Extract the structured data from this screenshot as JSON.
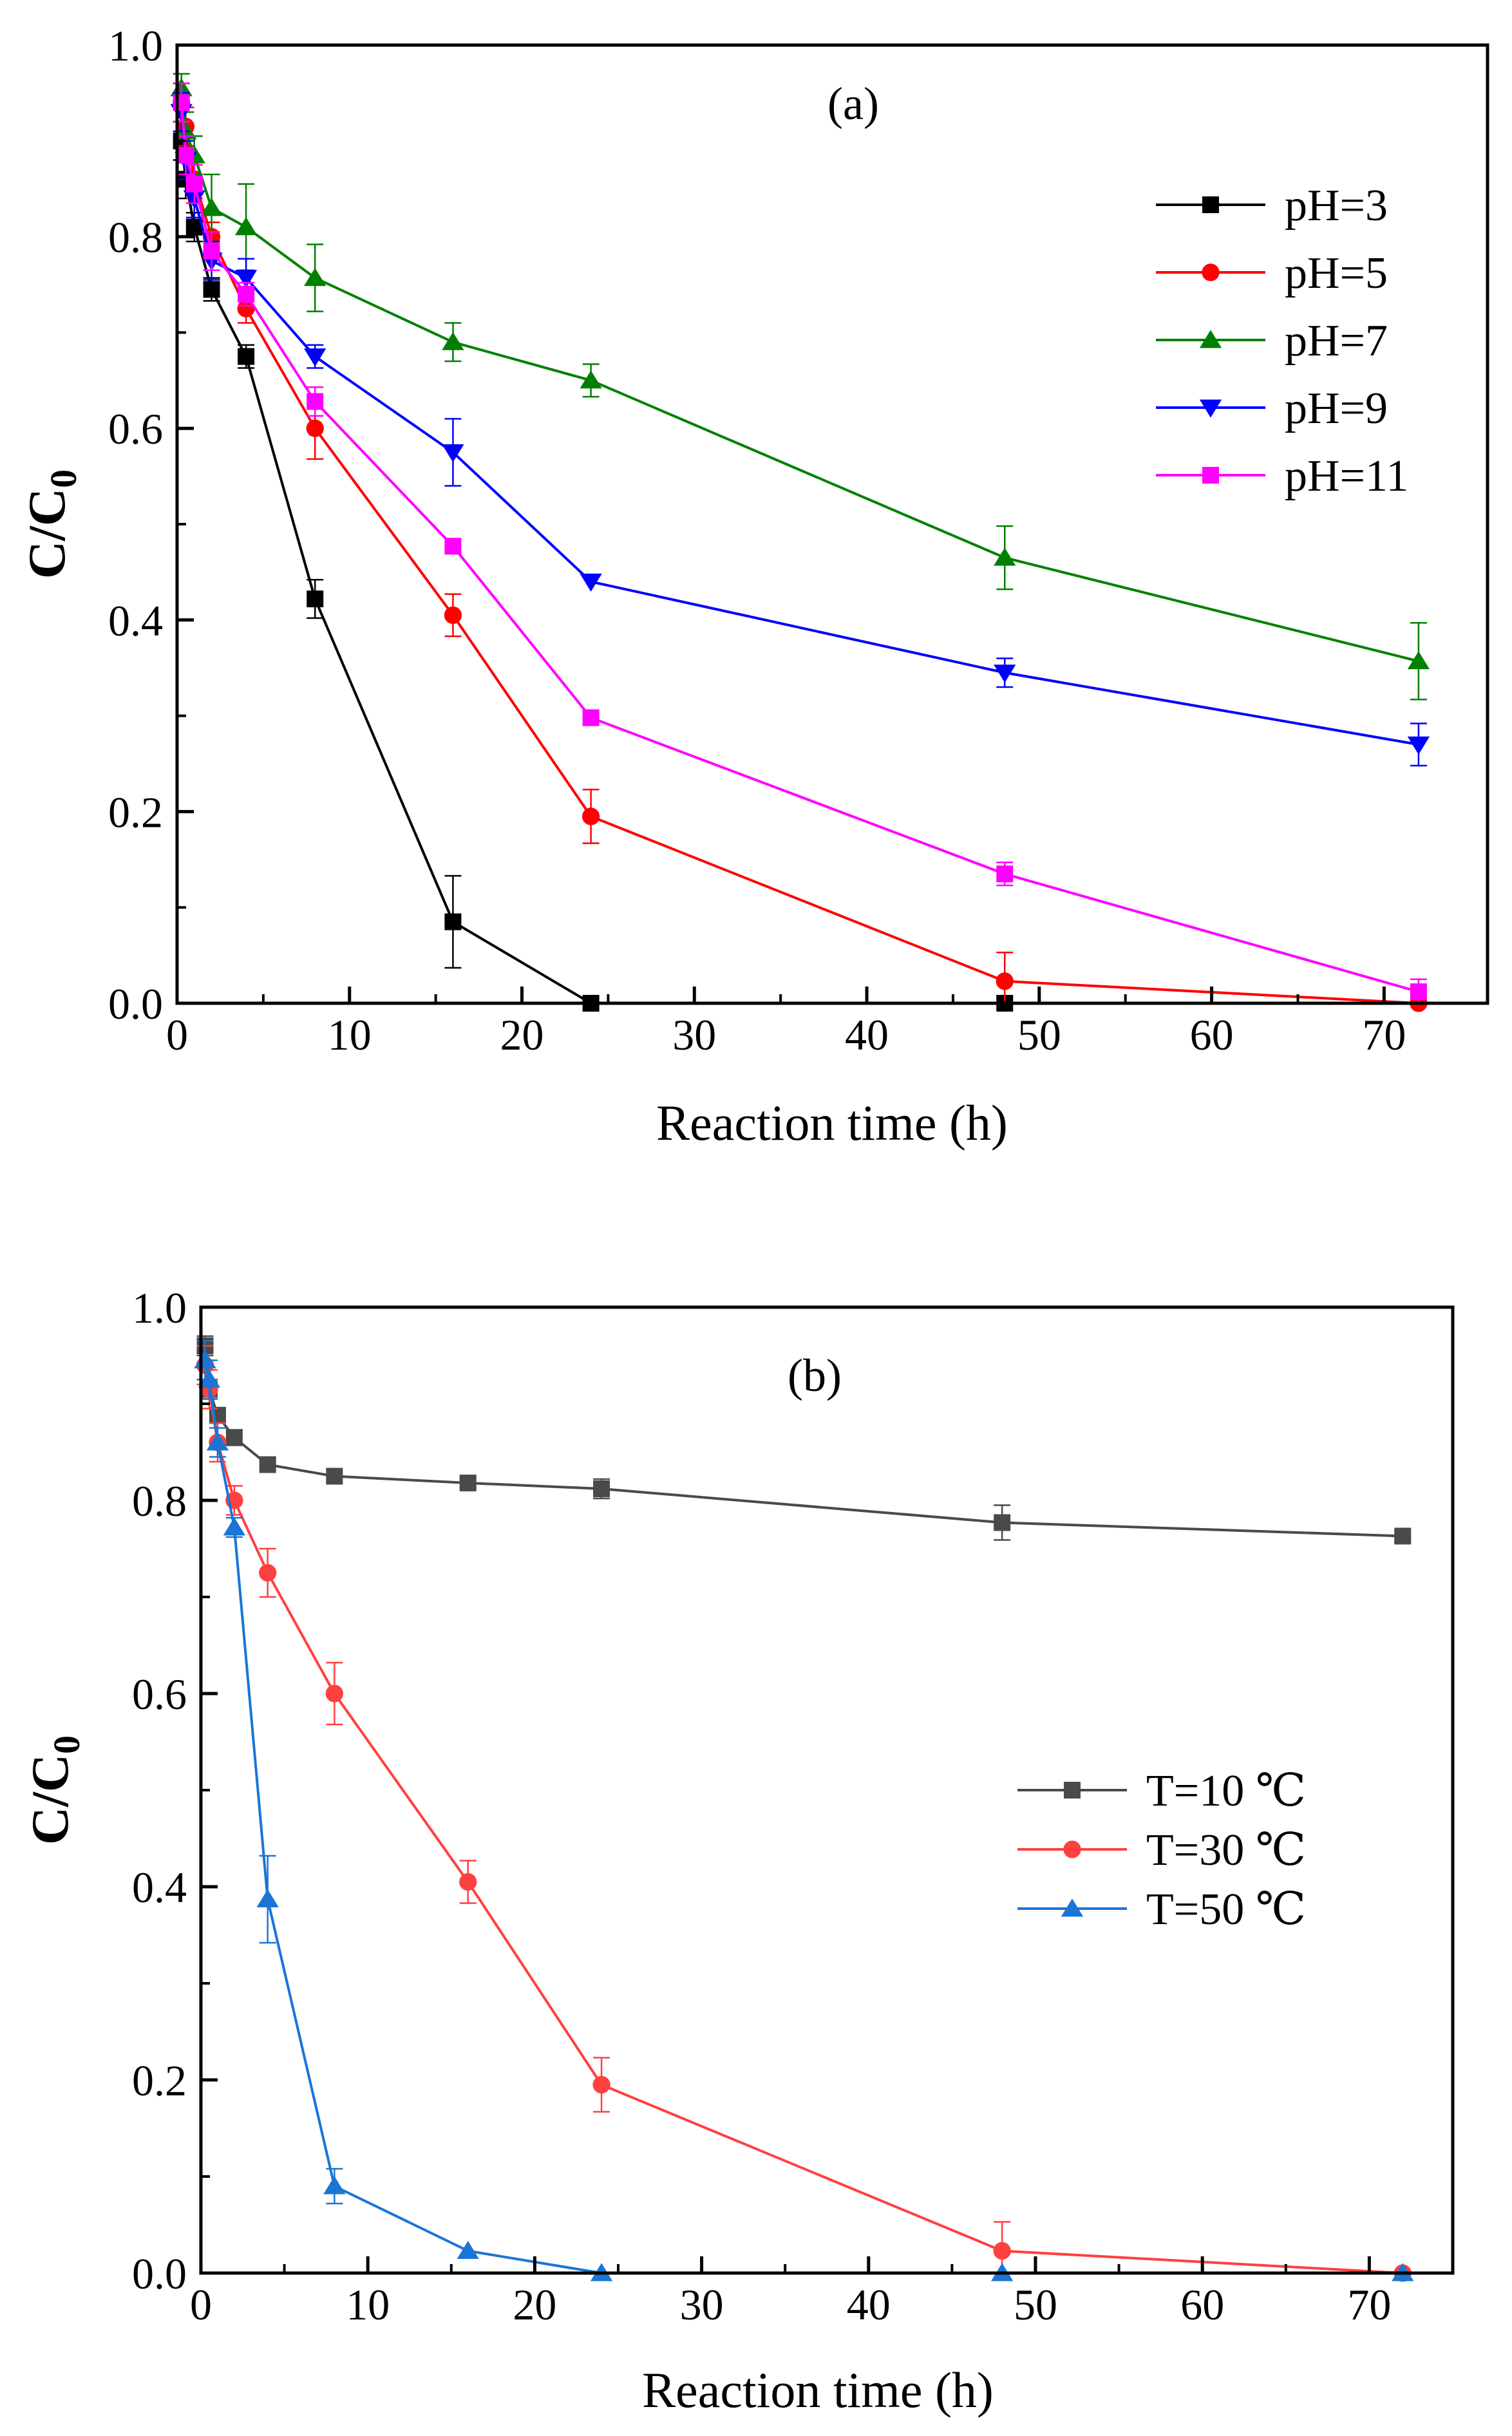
{
  "chart_data": [
    {
      "type": "line",
      "panel_label": "(a)",
      "xlabel": "Reaction time (h)",
      "ylabel_main": "C/C",
      "ylabel_sub": "0",
      "xlim": [
        0,
        76
      ],
      "ylim": [
        0,
        1.0
      ],
      "xticks": [
        0,
        10,
        20,
        30,
        40,
        50,
        60,
        70
      ],
      "yticks": [
        0.0,
        0.2,
        0.4,
        0.6,
        0.8,
        1.0
      ],
      "xtick_labels": [
        "0",
        "10",
        "20",
        "30",
        "40",
        "50",
        "60",
        "70"
      ],
      "ytick_labels": [
        "0.0",
        "0.2",
        "0.4",
        "0.6",
        "0.8",
        "1.0"
      ],
      "legend_position": "top-right",
      "series": [
        {
          "name": "pH=3",
          "color": "#000000",
          "marker": "square",
          "x": [
            0.25,
            0.5,
            1,
            2,
            4,
            8,
            16,
            24,
            48
          ],
          "y": [
            0.9,
            0.86,
            0.81,
            0.745,
            0.675,
            0.422,
            0.085,
            0.0,
            0.0
          ],
          "err": [
            0.02,
            0.02,
            0.015,
            0.012,
            0.012,
            0.02,
            0.048,
            0.0,
            0.0
          ]
        },
        {
          "name": "pH=5",
          "color": "#ff0000",
          "marker": "circle",
          "x": [
            0.25,
            0.5,
            1,
            2,
            4,
            8,
            16,
            24,
            48,
            72
          ],
          "y": [
            0.94,
            0.915,
            0.86,
            0.8,
            0.725,
            0.6,
            0.405,
            0.195,
            0.023,
            0.0
          ],
          "err": [
            0.02,
            0.02,
            0.02,
            0.015,
            0.015,
            0.032,
            0.022,
            0.028,
            0.03,
            0.0
          ]
        },
        {
          "name": "pH=7",
          "color": "#008000",
          "marker": "triangle-up",
          "x": [
            0.25,
            0.5,
            1,
            2,
            4,
            8,
            16,
            24,
            48,
            72
          ],
          "y": [
            0.955,
            0.91,
            0.885,
            0.83,
            0.81,
            0.757,
            0.69,
            0.65,
            0.465,
            0.357
          ],
          "err": [
            0.015,
            0.02,
            0.02,
            0.035,
            0.045,
            0.035,
            0.02,
            0.017,
            0.033,
            0.04
          ]
        },
        {
          "name": "pH=9",
          "color": "#0000ff",
          "marker": "triangle-down",
          "x": [
            0.25,
            0.5,
            1,
            2,
            4,
            8,
            16,
            24,
            48,
            72
          ],
          "y": [
            0.93,
            0.88,
            0.84,
            0.775,
            0.757,
            0.675,
            0.575,
            0.44,
            0.345,
            0.27
          ],
          "err": [
            0.02,
            0.02,
            0.02,
            0.02,
            0.02,
            0.012,
            0.035,
            0.0,
            0.015,
            0.022
          ]
        },
        {
          "name": "pH=11",
          "color": "#ff00ff",
          "marker": "square",
          "x": [
            0.25,
            0.5,
            1,
            2,
            4,
            8,
            16,
            24,
            48,
            72
          ],
          "y": [
            0.94,
            0.885,
            0.855,
            0.785,
            0.74,
            0.628,
            0.477,
            0.298,
            0.135,
            0.012
          ],
          "err": [
            0.02,
            0.02,
            0.02,
            0.02,
            0.012,
            0.015,
            0.0,
            0.0,
            0.012,
            0.013
          ]
        }
      ]
    },
    {
      "type": "line",
      "panel_label": "(b)",
      "xlabel": "Reaction time (h)",
      "ylabel_main": "C/C",
      "ylabel_sub": "0",
      "xlim": [
        0,
        75
      ],
      "ylim": [
        0,
        1.0
      ],
      "xticks": [
        0,
        10,
        20,
        30,
        40,
        50,
        60,
        70
      ],
      "yticks": [
        0.0,
        0.2,
        0.4,
        0.6,
        0.8,
        1.0
      ],
      "xtick_labels": [
        "0",
        "10",
        "20",
        "30",
        "40",
        "50",
        "60",
        "70"
      ],
      "ytick_labels": [
        "0.0",
        "0.2",
        "0.4",
        "0.6",
        "0.8",
        "1.0"
      ],
      "legend_position": "middle-right",
      "series": [
        {
          "name": "T=10 ℃",
          "color": "#4a4a4a",
          "marker": "square",
          "x": [
            0.25,
            0.5,
            1,
            2,
            4,
            8,
            16,
            24,
            48,
            72
          ],
          "y": [
            0.96,
            0.915,
            0.888,
            0.865,
            0.837,
            0.825,
            0.818,
            0.812,
            0.777,
            0.763
          ],
          "err": [
            0.01,
            0.01,
            0.008,
            0.008,
            0.006,
            0.006,
            0.005,
            0.01,
            0.018,
            0.006
          ]
        },
        {
          "name": "T=30 ℃",
          "color": "#ff4040",
          "marker": "circle",
          "x": [
            0.25,
            0.5,
            1,
            2,
            4,
            8,
            16,
            24,
            48,
            72
          ],
          "y": [
            0.94,
            0.915,
            0.86,
            0.8,
            0.725,
            0.6,
            0.405,
            0.195,
            0.023,
            0.0
          ],
          "err": [
            0.02,
            0.02,
            0.02,
            0.015,
            0.025,
            0.032,
            0.022,
            0.028,
            0.03,
            0.0
          ]
        },
        {
          "name": "T=50 ℃",
          "color": "#1a75d6",
          "marker": "triangle-up",
          "x": [
            0.25,
            0.5,
            1,
            2,
            4,
            8,
            16,
            24,
            48,
            72
          ],
          "y": [
            0.945,
            0.925,
            0.86,
            0.772,
            0.387,
            0.09,
            0.023,
            0.0,
            0.0,
            0.0
          ],
          "err": [
            0.02,
            0.02,
            0.015,
            0.01,
            0.045,
            0.018,
            0.0,
            0.0,
            0.0,
            0.0
          ]
        }
      ]
    }
  ]
}
